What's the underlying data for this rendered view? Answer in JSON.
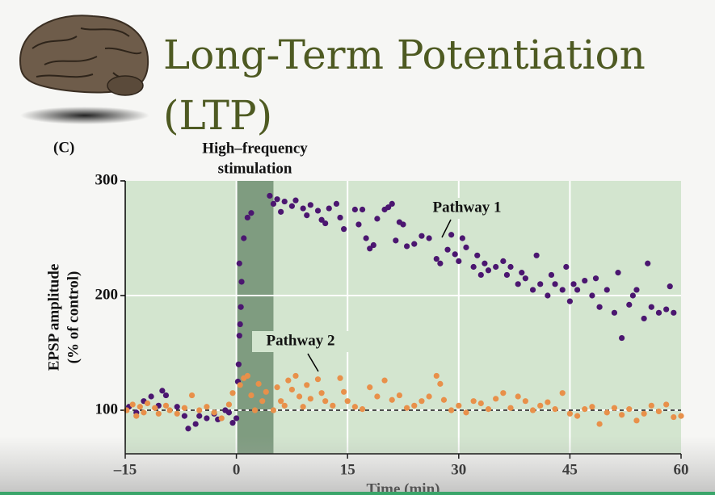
{
  "chart_data": {
    "type": "scatter",
    "title_lines": [
      "Long-Term Potentiation",
      "(LTP)"
    ],
    "panel_label": "(C)",
    "stimulation_label_lines": [
      "High–frequency",
      "stimulation"
    ],
    "stimulation_span": [
      0,
      5
    ],
    "reference_y": 100,
    "xlabel": "Time (min)",
    "ylabel_lines": [
      "EPSP amplitude",
      "(% of control)"
    ],
    "xlim": [
      -15,
      60
    ],
    "ylim": [
      62,
      300
    ],
    "xticks": [
      {
        "value": -15,
        "label": "–15"
      },
      0,
      15,
      30,
      45,
      60
    ],
    "yticks": [
      100,
      200,
      300
    ],
    "grid": true,
    "series": [
      {
        "name": "Pathway 1",
        "color": "#4b1670",
        "x": [
          -14.5,
          -13.5,
          -12.5,
          -11.5,
          -10.5,
          -10,
          -9.5,
          -8,
          -7,
          -6.5,
          -5.5,
          -5,
          -4,
          -3,
          -2.5,
          -1.5,
          -1,
          -0.5,
          0,
          0.2,
          0.3,
          0.4,
          0.5,
          0.6,
          0.7,
          0.4,
          1,
          1.5,
          2,
          4.5,
          5,
          5.5,
          6,
          6.5,
          7.5,
          8,
          9,
          9.5,
          10,
          11,
          11.5,
          12,
          12.5,
          13.5,
          14,
          14.5,
          16,
          16.5,
          17,
          17.5,
          18,
          18.5,
          19,
          20,
          20.5,
          21,
          21.5,
          22,
          22.5,
          23,
          24,
          25,
          26,
          27,
          27.5,
          28.5,
          29,
          29.5,
          30,
          30.5,
          31,
          32,
          32.5,
          33,
          33.5,
          34,
          35,
          36,
          36.5,
          37,
          38,
          38.5,
          39,
          40,
          40.5,
          41,
          42,
          42.5,
          43,
          44,
          44.5,
          45,
          45.5,
          46,
          47,
          48,
          48.5,
          49,
          50,
          51,
          51.5,
          52,
          53,
          53.5,
          54,
          55,
          55.5,
          56,
          57,
          58,
          58.5,
          59
        ],
        "values": [
          103,
          98,
          108,
          112,
          104,
          117,
          113,
          103,
          95,
          84,
          88,
          95,
          93,
          97,
          92,
          100,
          98,
          89,
          93,
          125,
          140,
          165,
          175,
          190,
          212,
          228,
          250,
          268,
          272,
          287,
          280,
          284,
          273,
          282,
          278,
          283,
          276,
          270,
          279,
          274,
          266,
          263,
          276,
          280,
          268,
          258,
          275,
          262,
          275,
          250,
          241,
          244,
          267,
          275,
          277,
          280,
          248,
          264,
          262,
          243,
          245,
          252,
          250,
          232,
          228,
          240,
          253,
          236,
          230,
          250,
          242,
          225,
          235,
          218,
          228,
          222,
          225,
          230,
          218,
          225,
          210,
          220,
          215,
          205,
          235,
          210,
          200,
          218,
          210,
          205,
          225,
          195,
          210,
          205,
          213,
          200,
          215,
          190,
          205,
          185,
          220,
          163,
          192,
          200,
          205,
          180,
          228,
          190,
          185,
          188,
          208,
          185
        ]
      },
      {
        "name": "Pathway 2",
        "color": "#e8904a",
        "x": [
          -14.8,
          -14,
          -13.5,
          -13,
          -12.5,
          -12,
          -11,
          -10.5,
          -9.5,
          -9,
          -8,
          -7,
          -6,
          -5,
          -4,
          -3,
          -2,
          -1,
          -0.5,
          0.5,
          1,
          1.5,
          2,
          2.5,
          3,
          3.5,
          4,
          5,
          5.5,
          6,
          6.5,
          7,
          7.5,
          8,
          8.5,
          9,
          9.5,
          10,
          11,
          11.5,
          12,
          13,
          14,
          14.5,
          15,
          16,
          17,
          18,
          19,
          20,
          21,
          22,
          23,
          24,
          25,
          26,
          27,
          27.5,
          28,
          29,
          30,
          31,
          32,
          33,
          34,
          35,
          36,
          37,
          38,
          39,
          40,
          41,
          42,
          43,
          44,
          45,
          46,
          47,
          48,
          49,
          50,
          51,
          52,
          53,
          54,
          55,
          56,
          57,
          58,
          59,
          60
        ],
        "values": [
          100,
          105,
          95,
          103,
          98,
          106,
          102,
          97,
          104,
          100,
          97,
          102,
          113,
          100,
          103,
          98,
          93,
          105,
          115,
          122,
          128,
          130,
          113,
          100,
          123,
          108,
          116,
          100,
          120,
          108,
          104,
          126,
          118,
          130,
          112,
          103,
          122,
          110,
          127,
          115,
          108,
          104,
          128,
          116,
          108,
          103,
          101,
          120,
          112,
          126,
          109,
          113,
          102,
          104,
          108,
          112,
          130,
          123,
          109,
          100,
          104,
          98,
          108,
          106,
          101,
          110,
          115,
          102,
          112,
          108,
          100,
          104,
          107,
          101,
          115,
          97,
          95,
          101,
          103,
          88,
          98,
          102,
          96,
          101,
          91,
          97,
          104,
          99,
          105,
          94,
          95
        ]
      }
    ]
  }
}
